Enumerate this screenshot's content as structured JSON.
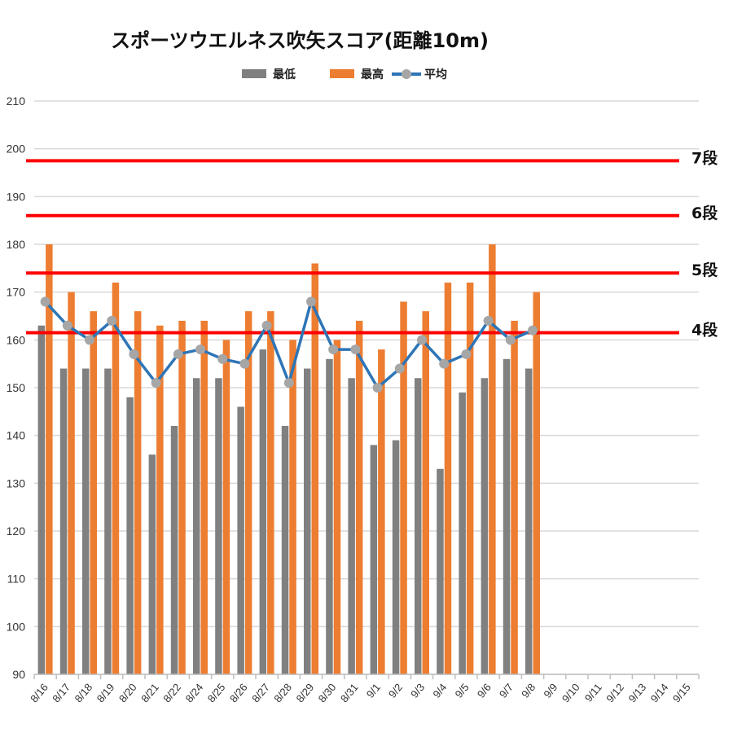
{
  "chart_data": {
    "type": "bar",
    "title": "スポーツウエルネス吹矢スコア(距離10m)",
    "xlabel": "",
    "ylabel": "",
    "ylim": [
      90,
      210
    ],
    "yticks": [
      90,
      100,
      110,
      120,
      130,
      140,
      150,
      160,
      170,
      180,
      190,
      200,
      210
    ],
    "grid": true,
    "legend_position": "top",
    "categories": [
      "8/16",
      "8/17",
      "8/18",
      "8/19",
      "8/20",
      "8/21",
      "8/22",
      "8/24",
      "8/25",
      "8/26",
      "8/27",
      "8/28",
      "8/29",
      "8/30",
      "8/31",
      "9/1",
      "9/2",
      "9/3",
      "9/4",
      "9/5",
      "9/6",
      "9/7",
      "9/8",
      "9/9",
      "9/10",
      "9/11",
      "9/12",
      "9/13",
      "9/14",
      "9/15"
    ],
    "series": [
      {
        "name": "最低",
        "type": "bar",
        "color": "#808080",
        "values": [
          163,
          154,
          154,
          154,
          148,
          136,
          142,
          152,
          152,
          146,
          158,
          142,
          154,
          156,
          152,
          138,
          139,
          152,
          133,
          149,
          152,
          156,
          154,
          null,
          null,
          null,
          null,
          null,
          null,
          null
        ]
      },
      {
        "name": "最高",
        "type": "bar",
        "color": "#ED7D31",
        "values": [
          180,
          170,
          166,
          172,
          166,
          163,
          164,
          164,
          160,
          166,
          166,
          160,
          176,
          160,
          164,
          158,
          168,
          166,
          172,
          172,
          180,
          164,
          170,
          null,
          null,
          null,
          null,
          null,
          null,
          null
        ]
      },
      {
        "name": "平均",
        "type": "line",
        "color": "#2E75B6",
        "marker_color": "#A6A6A6",
        "values": [
          168,
          163,
          160,
          164,
          157,
          151,
          157,
          158,
          156,
          155,
          163,
          151,
          168,
          158,
          158,
          150,
          154,
          160,
          155,
          157,
          164,
          160,
          162,
          null,
          null,
          null,
          null,
          null,
          null,
          null
        ]
      }
    ],
    "reference_lines": [
      {
        "label": "7段",
        "value": 197.5,
        "color": "#FF0000"
      },
      {
        "label": "6段",
        "value": 186,
        "color": "#FF0000"
      },
      {
        "label": "5段",
        "value": 174,
        "color": "#FF0000"
      },
      {
        "label": "4段",
        "value": 161.5,
        "color": "#FF0000"
      }
    ]
  }
}
